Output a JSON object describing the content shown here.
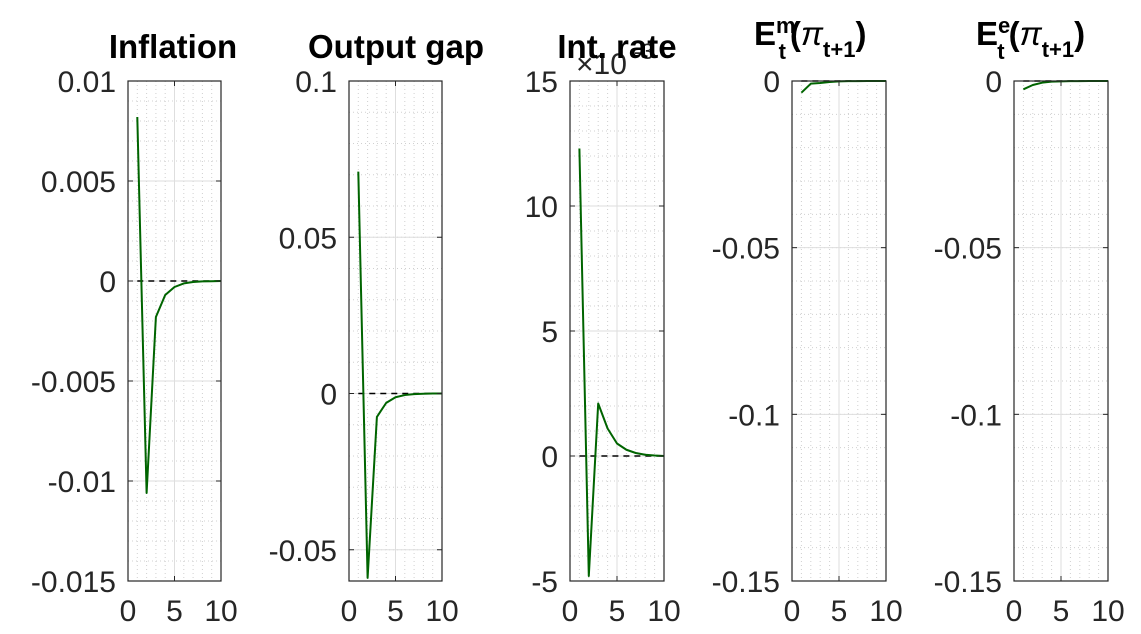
{
  "figure": {
    "background": "#ffffff",
    "line_color": "#006400",
    "zero_line_color": "#000000"
  },
  "chart_data": [
    {
      "type": "line",
      "title": "Inflation",
      "title_parts": [],
      "multiplier": "",
      "x": [
        1,
        2,
        3,
        4,
        5,
        6,
        7,
        8,
        9,
        10
      ],
      "series": [
        {
          "values": [
            0.0082,
            -0.0106,
            -0.0018,
            -0.0007,
            -0.0003,
            -0.00012,
            -5e-05,
            -2e-05,
            -1e-05,
            0
          ]
        }
      ],
      "xlim": [
        0,
        10
      ],
      "ylim": [
        -0.015,
        0.01
      ],
      "xticks": [
        0,
        5,
        10
      ],
      "xtick_labels": [
        "0",
        "5",
        "10"
      ],
      "yticks": [
        0.01,
        0.005,
        0,
        -0.005,
        -0.01,
        -0.015
      ],
      "ytick_labels": [
        "0.01",
        "0.005",
        "0",
        "-0.005",
        "-0.01",
        "-0.015"
      ],
      "reference_line": 0,
      "grid": true
    },
    {
      "type": "line",
      "title": "Output gap",
      "title_parts": [],
      "multiplier": "",
      "x": [
        1,
        2,
        3,
        4,
        5,
        6,
        7,
        8,
        9,
        10
      ],
      "series": [
        {
          "values": [
            0.071,
            -0.059,
            -0.0075,
            -0.003,
            -0.0012,
            -0.0005,
            -0.0002,
            -0.0001,
            0,
            0
          ]
        }
      ],
      "xlim": [
        0,
        10
      ],
      "ylim": [
        -0.06,
        0.1
      ],
      "xticks": [
        0,
        5,
        10
      ],
      "xtick_labels": [
        "0",
        "5",
        "10"
      ],
      "yticks": [
        0.1,
        0.05,
        0,
        -0.05
      ],
      "ytick_labels": [
        "0.1",
        "0.05",
        "0",
        "-0.05"
      ],
      "reference_line": 0,
      "grid": true
    },
    {
      "type": "line",
      "title": "Int. rate",
      "title_parts": [],
      "multiplier": "×10",
      "multiplier_exponent": "-3",
      "x": [
        1,
        2,
        3,
        4,
        5,
        6,
        7,
        8,
        9,
        10
      ],
      "series": [
        {
          "values": [
            12.3,
            -4.8,
            2.1,
            1.1,
            0.5,
            0.25,
            0.12,
            0.05,
            0.02,
            0
          ]
        }
      ],
      "xlim": [
        0,
        10
      ],
      "ylim": [
        -5,
        15
      ],
      "xticks": [
        0,
        5,
        10
      ],
      "xtick_labels": [
        "0",
        "5",
        "10"
      ],
      "yticks": [
        15,
        10,
        5,
        0,
        -5
      ],
      "ytick_labels": [
        "15",
        "10",
        "5",
        "0",
        "-5"
      ],
      "reference_line": 0,
      "grid": true
    },
    {
      "type": "line",
      "title": "",
      "title_parts": [
        {
          "t": "E",
          "dy": 0,
          "size": 33,
          "bold": true
        },
        {
          "t": "m",
          "dy": -12,
          "size": 22,
          "bold": true
        },
        {
          "t": "t",
          "dx": -17,
          "dy": 26,
          "size": 22,
          "bold": true
        },
        {
          "t": "(",
          "dx": 4,
          "dy": -14,
          "size": 33,
          "bold": true
        },
        {
          "t": "π",
          "dy": 0,
          "size": 33,
          "bold": false,
          "italic": true
        },
        {
          "t": "t+1",
          "dy": 12,
          "size": 22,
          "bold": true
        },
        {
          "t": ")",
          "dy": -12,
          "size": 33,
          "bold": true
        }
      ],
      "multiplier": "",
      "x": [
        1,
        2,
        3,
        4,
        5,
        6,
        7,
        8,
        9,
        10
      ],
      "series": [
        {
          "values": [
            -0.0035,
            -0.0008,
            -0.0006,
            -0.0003,
            -0.0001,
            -5e-05,
            -2e-05,
            0,
            0,
            0
          ]
        }
      ],
      "xlim": [
        0,
        10
      ],
      "ylim": [
        -0.15,
        0
      ],
      "xticks": [
        0,
        5,
        10
      ],
      "xtick_labels": [
        "0",
        "5",
        "10"
      ],
      "yticks": [
        0,
        -0.05,
        -0.1,
        -0.15
      ],
      "ytick_labels": [
        "0",
        "-0.05",
        "-0.1",
        "-0.15"
      ],
      "reference_line": 0,
      "grid": true
    },
    {
      "type": "line",
      "title": "",
      "title_parts": [
        {
          "t": "E",
          "dy": 0,
          "size": 33,
          "bold": true
        },
        {
          "t": "e",
          "dy": -12,
          "size": 22,
          "bold": true
        },
        {
          "t": "t",
          "dx": -13,
          "dy": 26,
          "size": 22,
          "bold": true
        },
        {
          "t": "(",
          "dx": 4,
          "dy": -14,
          "size": 33,
          "bold": true
        },
        {
          "t": "π",
          "dy": 0,
          "size": 33,
          "bold": false,
          "italic": true
        },
        {
          "t": "t+1",
          "dy": 12,
          "size": 22,
          "bold": true
        },
        {
          "t": ")",
          "dy": -12,
          "size": 33,
          "bold": true
        }
      ],
      "multiplier": "",
      "x": [
        1,
        2,
        3,
        4,
        5,
        6,
        7,
        8,
        9,
        10
      ],
      "series": [
        {
          "values": [
            -0.0025,
            -0.0012,
            -0.0005,
            -0.0002,
            -0.0001,
            -5e-05,
            -2e-05,
            0,
            0,
            0
          ]
        }
      ],
      "xlim": [
        0,
        10
      ],
      "ylim": [
        -0.15,
        0
      ],
      "xticks": [
        0,
        5,
        10
      ],
      "xtick_labels": [
        "0",
        "5",
        "10"
      ],
      "yticks": [
        0,
        -0.05,
        -0.1,
        -0.15
      ],
      "ytick_labels": [
        "0",
        "-0.05",
        "-0.1",
        "-0.15"
      ],
      "reference_line": 0,
      "grid": true
    }
  ]
}
